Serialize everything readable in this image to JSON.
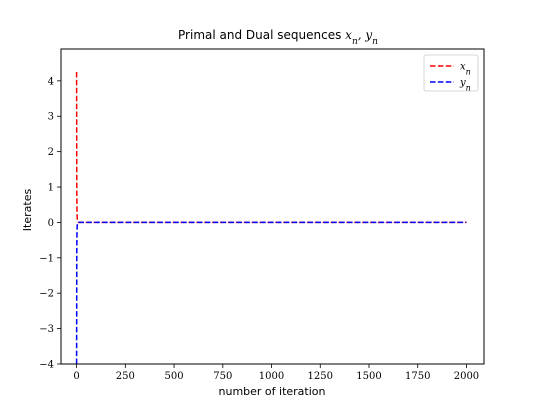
{
  "chart_data": {
    "type": "line",
    "title": "Primal and Dual sequences x_n, y_n",
    "title_plain": "Primal and Dual sequences ",
    "title_math": "xn, yn",
    "xlabel": "number of iteration",
    "ylabel": "Iterates",
    "xlim": [
      -80,
      2090
    ],
    "ylim": [
      -4.0,
      4.9
    ],
    "xticks": [
      0,
      250,
      500,
      750,
      1000,
      1250,
      1500,
      1750,
      2000
    ],
    "yticks": [
      -4,
      -3,
      -2,
      -1,
      0,
      1,
      2,
      3,
      4
    ],
    "ytick_labels": [
      "−4",
      "−3",
      "−2",
      "−1",
      "0",
      "1",
      "2",
      "3",
      "4"
    ],
    "legend_position": "top-right",
    "grid": false,
    "series": [
      {
        "name": "x_n",
        "legend_label": "xn",
        "color": "#ff0000",
        "style": "dashed",
        "x": [
          0,
          1,
          2,
          3,
          4,
          5,
          6,
          8,
          10,
          15,
          20,
          50,
          100,
          500,
          1000,
          1500,
          2000
        ],
        "y": [
          4.25,
          0.9,
          0.35,
          0.15,
          0.07,
          0.04,
          0.02,
          0.01,
          0.0,
          0.0,
          0.0,
          0.0,
          0.0,
          0.0,
          0.0,
          0.0,
          0.0
        ]
      },
      {
        "name": "y_n",
        "legend_label": "yn",
        "color": "#0000ff",
        "style": "dashed",
        "x": [
          0,
          1,
          2,
          3,
          4,
          5,
          6,
          8,
          10,
          15,
          20,
          50,
          100,
          500,
          1000,
          1500,
          2000
        ],
        "y": [
          -4.0,
          -0.8,
          -0.3,
          -0.12,
          -0.05,
          -0.02,
          -0.01,
          0.0,
          0.0,
          0.0,
          0.0,
          0.0,
          0.0,
          0.0,
          0.0,
          0.0,
          0.0
        ]
      }
    ]
  }
}
